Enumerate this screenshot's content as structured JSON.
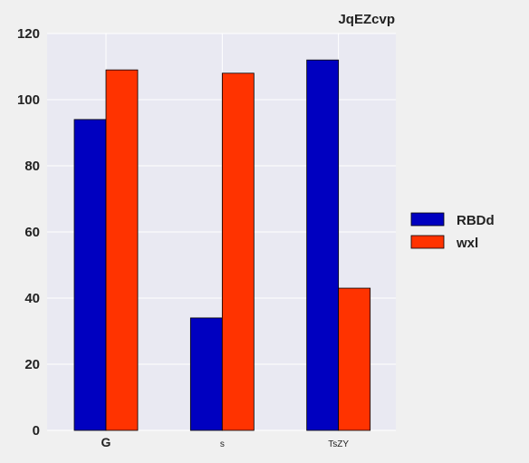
{
  "chart_data": {
    "type": "bar",
    "title": "JqEZcvp",
    "xlabel": "",
    "ylabel": "",
    "categories": [
      "G",
      "s",
      "TsZY"
    ],
    "series": [
      {
        "name": "RBDd",
        "values": [
          94,
          34,
          112
        ],
        "color": "#0000c0"
      },
      {
        "name": "wxl",
        "values": [
          109,
          108,
          43
        ],
        "color": "#ff3300"
      }
    ],
    "ylim": [
      0,
      120
    ],
    "yticks": [
      0,
      20,
      40,
      60,
      80,
      100,
      120
    ],
    "grid": true,
    "legend_position": "right",
    "plot_background": "#e9e9f2"
  }
}
